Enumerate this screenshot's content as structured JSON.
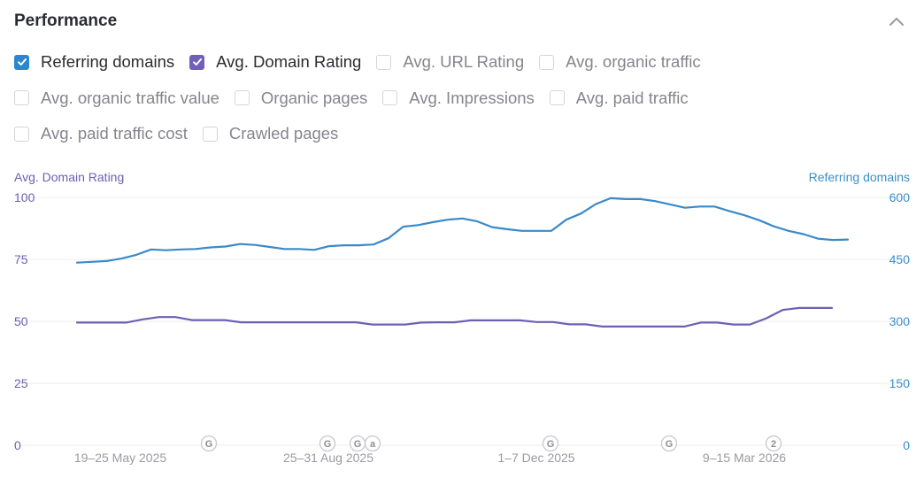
{
  "header": {
    "title": "Performance"
  },
  "toggles": [
    [
      {
        "label": "Referring domains",
        "checked": true,
        "color": "#2d86d1"
      },
      {
        "label": "Avg. Domain Rating",
        "checked": true,
        "color": "#7160b8"
      },
      {
        "label": "Avg. URL Rating",
        "checked": false
      },
      {
        "label": "Avg. organic traffic",
        "checked": false
      }
    ],
    [
      {
        "label": "Avg. organic traffic value",
        "checked": false
      },
      {
        "label": "Organic pages",
        "checked": false
      },
      {
        "label": "Avg. Impressions",
        "checked": false
      },
      {
        "label": "Avg. paid traffic",
        "checked": false
      }
    ],
    [
      {
        "label": "Avg. paid traffic cost",
        "checked": false
      },
      {
        "label": "Crawled pages",
        "checked": false
      }
    ]
  ],
  "chart_data": {
    "type": "line",
    "left_axis_title": "Avg. Domain Rating",
    "right_axis_title": "Referring domains",
    "left_ticks": [
      "0",
      "25",
      "50",
      "75",
      "100"
    ],
    "right_ticks": [
      "0",
      "150",
      "300",
      "450",
      "600"
    ],
    "left_ylim": [
      0,
      100
    ],
    "right_ylim": [
      0,
      600
    ],
    "x_labels": [
      "19–25 May 2025",
      "25–31 Aug 2025",
      "1–7 Dec 2025",
      "9–15 Mar 2026"
    ],
    "colors": {
      "referring_domains": "#3a8ac9",
      "domain_rating": "#6f5fb3",
      "left_axis": "#6d5fb2",
      "right_axis": "#3a8fc9"
    },
    "grid": true,
    "series": [
      {
        "key": "referring_domains",
        "axis": "right",
        "values": [
          442,
          444,
          446,
          452,
          461,
          474,
          472,
          474,
          475,
          479,
          481,
          487,
          485,
          480,
          475,
          475,
          473,
          482,
          484,
          484,
          486,
          501,
          529,
          533,
          540,
          546,
          549,
          542,
          528,
          523,
          519,
          519,
          519,
          546,
          561,
          584,
          598,
          596,
          596,
          591,
          583,
          575,
          578,
          578,
          567,
          557,
          545,
          530,
          519,
          511,
          500,
          497,
          498
        ]
      },
      {
        "key": "domain_rating",
        "axis": "left",
        "values": [
          49.5,
          49.5,
          49.5,
          49.5,
          50.8,
          51.7,
          51.7,
          50.5,
          50.5,
          50.5,
          49.6,
          49.6,
          49.6,
          49.6,
          49.6,
          49.6,
          49.6,
          49.6,
          48.7,
          48.7,
          48.7,
          49.5,
          49.6,
          49.6,
          50.4,
          50.4,
          50.4,
          50.4,
          49.7,
          49.7,
          48.8,
          48.8,
          47.9,
          47.9,
          47.9,
          47.9,
          47.9,
          47.9,
          49.5,
          49.5,
          48.7,
          48.7,
          51.2,
          54.6,
          55.4,
          55.4,
          55.4
        ]
      }
    ],
    "annotations": [
      "G",
      "G",
      "G",
      "a",
      "G",
      "G",
      "2"
    ]
  }
}
